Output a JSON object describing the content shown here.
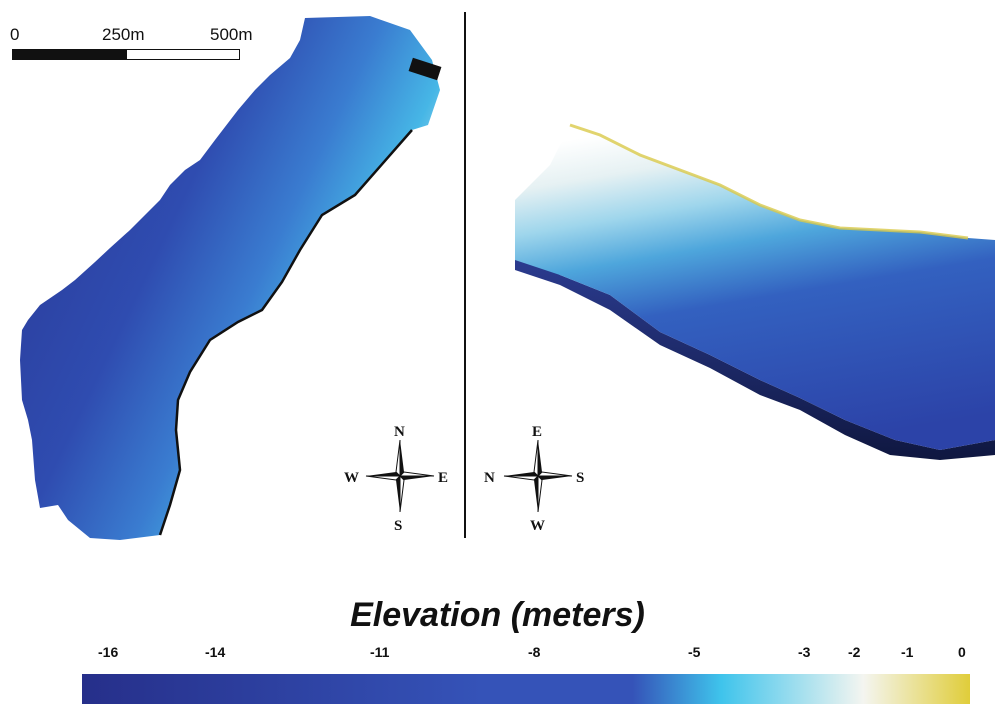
{
  "scale_bar": {
    "labels": [
      "0",
      "250m",
      "500m"
    ]
  },
  "compass_left": {
    "top": "N",
    "left": "W",
    "right": "E",
    "bottom": "S"
  },
  "compass_right": {
    "top": "E",
    "left": "N",
    "right": "S",
    "bottom": "W"
  },
  "legend": {
    "title": "Elevation (meters)",
    "ticks": [
      -16,
      -14,
      -11,
      -8,
      -5,
      -3,
      -2,
      -1,
      0
    ],
    "colors": {
      "deep": "#262f8a",
      "mid": "#3553b8",
      "shallow": "#3fc4ec",
      "near_zero": "#f4f5f0",
      "zero": "#e0cd3a"
    }
  }
}
